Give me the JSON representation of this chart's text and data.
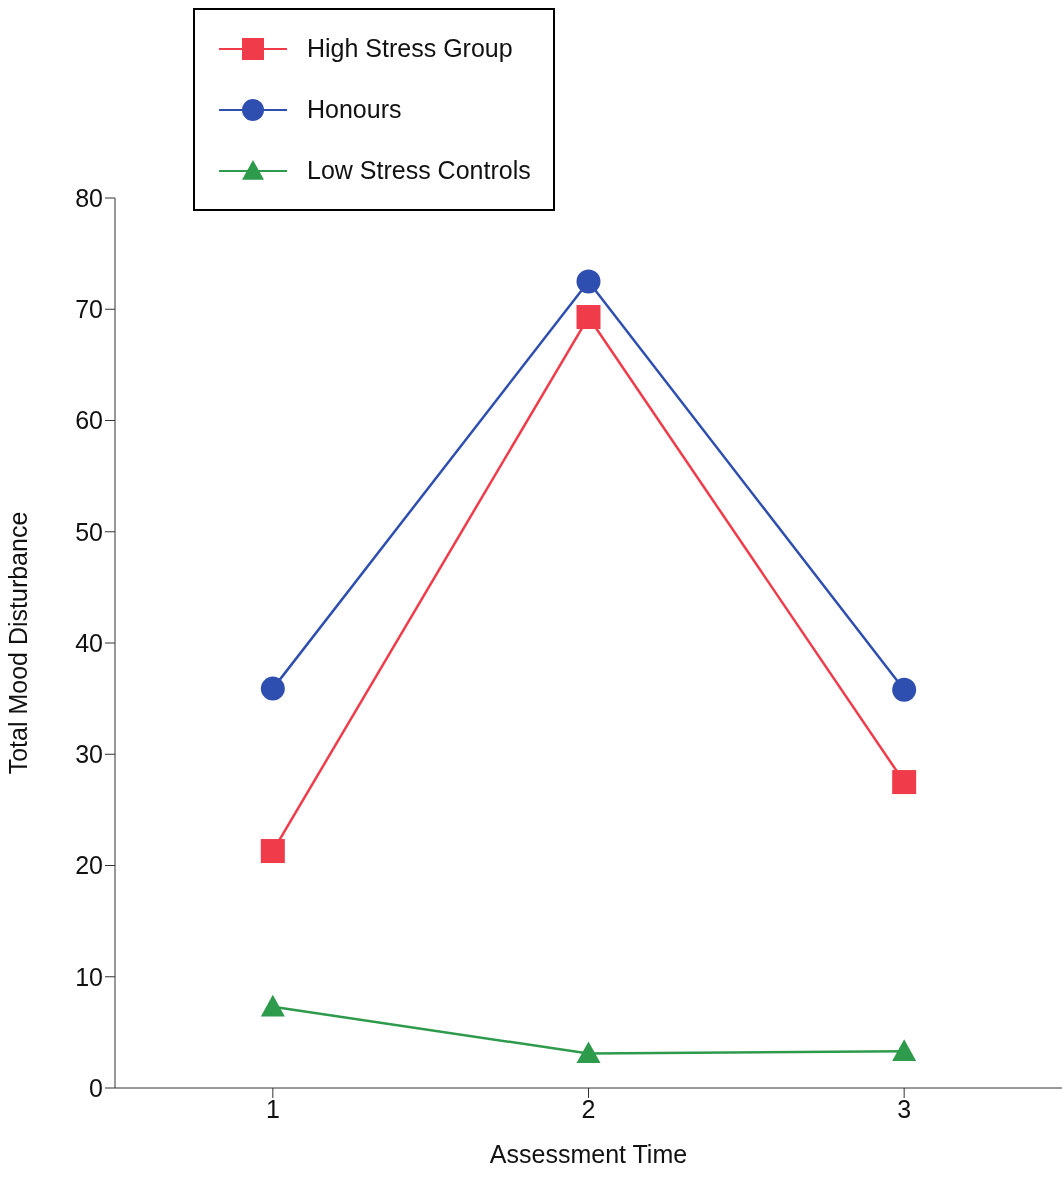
{
  "chart_data": {
    "type": "line",
    "xlabel": "Assessment Time",
    "ylabel": "Total Mood Disturbance",
    "x": [
      1,
      2,
      3
    ],
    "series": [
      {
        "name": "High Stress Group",
        "color": "#f03c4a",
        "marker": "square",
        "values": [
          21.3,
          69.3,
          27.5
        ]
      },
      {
        "name": "Honours",
        "color": "#2f4fb0",
        "marker": "circle",
        "values": [
          35.9,
          72.5,
          35.8
        ]
      },
      {
        "name": "Low Stress Controls",
        "color": "#2e9a4c",
        "marker": "triangle",
        "values": [
          7.3,
          3.1,
          3.3
        ]
      }
    ],
    "xlim": [
      0.5,
      3.5
    ],
    "xticks": [
      1,
      2,
      3
    ],
    "ylim": [
      0,
      80
    ],
    "yticks": [
      0,
      10,
      20,
      30,
      40,
      50,
      60,
      70,
      80
    ],
    "grid": false,
    "legend": "top left",
    "line_style": "solid"
  }
}
